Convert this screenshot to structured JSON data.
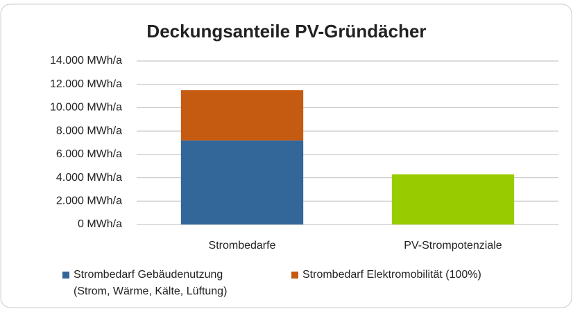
{
  "chart_data": {
    "type": "stacked_bar",
    "title": "Deckungsanteile PV-Gründächer",
    "categories": [
      "Strombedarfe",
      "PV-Strompotenziale"
    ],
    "series": [
      {
        "name": "Strombedarf Gebäudenutzung (Strom, Wärme, Kälte, Lüftung)",
        "color": "#336699",
        "point_colors": [
          "#336699",
          "#99cc00"
        ],
        "values": [
          7200,
          4300
        ]
      },
      {
        "name": "Strombedarf Elektromobilität (100%)",
        "color": "#c55a11",
        "values": [
          4300,
          null
        ]
      }
    ],
    "ylim": [
      0,
      14000
    ],
    "yticks": [
      {
        "value": 0,
        "label": "0 MWh/a"
      },
      {
        "value": 2000,
        "label": "2.000 MWh/a"
      },
      {
        "value": 4000,
        "label": "4.000 MWh/a"
      },
      {
        "value": 6000,
        "label": "6.000 MWh/a"
      },
      {
        "value": 8000,
        "label": "8.000 MWh/a"
      },
      {
        "value": 10000,
        "label": "10.000 MWh/a"
      },
      {
        "value": 12000,
        "label": "12.000 MWh/a"
      },
      {
        "value": 14000,
        "label": "14.000 MWh/a"
      }
    ],
    "grid": true,
    "legend": "bottom"
  }
}
